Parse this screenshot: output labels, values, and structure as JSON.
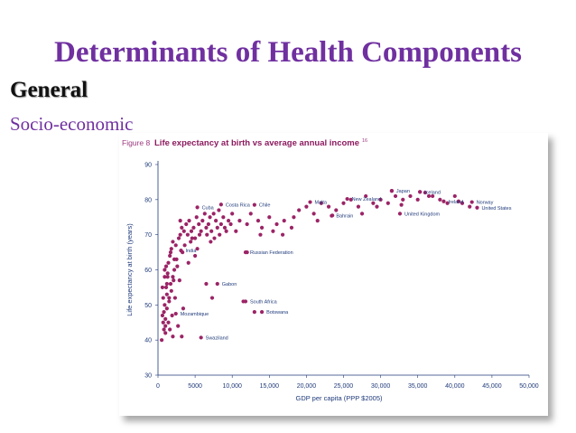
{
  "slide": {
    "title": "Determinants of Health Components",
    "heading": "General",
    "subheading": "Socio-economic"
  },
  "colors": {
    "title": "#7030a0",
    "figure_label": "#9b3a7f",
    "chart_title": "#8b1a5e",
    "axis_text": "#1f3a7a",
    "point": "#9b2466"
  },
  "figure": {
    "label": "Figure 8",
    "title": "Life expectancy at birth vs average annual income",
    "superscript": "16"
  },
  "chart_data": {
    "type": "scatter",
    "title": "Life expectancy at birth vs average annual income",
    "xlabel": "GDP per capita (PPP $2005)",
    "ylabel": "Life expectancy at birth (years)",
    "xlim": [
      0,
      50000
    ],
    "ylim": [
      30,
      90
    ],
    "xticks": [
      0,
      5000,
      10000,
      15000,
      20000,
      25000,
      30000,
      35000,
      40000,
      45000,
      50000
    ],
    "xtick_labels": [
      "0",
      "5000",
      "10,000",
      "15,000",
      "20,000",
      "25,000",
      "30,000",
      "35,000",
      "40,000",
      "45,000",
      "50,000"
    ],
    "yticks": [
      30,
      40,
      50,
      60,
      70,
      80,
      90
    ],
    "ytick_labels": [
      "30",
      "40",
      "50",
      "60",
      "70",
      "80",
      "90"
    ],
    "grid": false,
    "annotations": [
      {
        "text": "Japan",
        "x": 31500,
        "y": 82.5
      },
      {
        "text": "Iceland",
        "x": 35300,
        "y": 82.2
      },
      {
        "text": "New Zealand",
        "x": 25500,
        "y": 80.2
      },
      {
        "text": "Ireland",
        "x": 38500,
        "y": 79.5
      },
      {
        "text": "Norway",
        "x": 42300,
        "y": 79.3
      },
      {
        "text": "United States",
        "x": 43000,
        "y": 77.7
      },
      {
        "text": "Costa Rica",
        "x": 8500,
        "y": 78.6
      },
      {
        "text": "Chile",
        "x": 13000,
        "y": 78.5
      },
      {
        "text": "Malta",
        "x": 20500,
        "y": 79.3
      },
      {
        "text": "Cuba",
        "x": 5300,
        "y": 77.8
      },
      {
        "text": "Bahrain",
        "x": 23400,
        "y": 75.4
      },
      {
        "text": "United Kingdom",
        "x": 32600,
        "y": 76.0
      },
      {
        "text": "India",
        "x": 3100,
        "y": 65.5
      },
      {
        "text": "Russian Federation",
        "x": 11800,
        "y": 65.0
      },
      {
        "text": "Gabon",
        "x": 8000,
        "y": 56.0
      },
      {
        "text": "South Africa",
        "x": 11800,
        "y": 51.0
      },
      {
        "text": "Botswana",
        "x": 14000,
        "y": 48.0
      },
      {
        "text": "Mozambique",
        "x": 2400,
        "y": 47.5
      },
      {
        "text": "Swaziland",
        "x": 5800,
        "y": 40.7
      }
    ],
    "series": [
      {
        "points": [
          [
            500,
            40
          ],
          [
            700,
            45
          ],
          [
            800,
            48
          ],
          [
            900,
            50
          ],
          [
            1000,
            42
          ],
          [
            1100,
            55
          ],
          [
            1200,
            53
          ],
          [
            1300,
            58
          ],
          [
            900,
            60
          ],
          [
            1500,
            52
          ],
          [
            800,
            43
          ],
          [
            1000,
            46
          ],
          [
            1200,
            49
          ],
          [
            600,
            47
          ],
          [
            1700,
            56
          ],
          [
            2000,
            58
          ],
          [
            1400,
            62
          ],
          [
            1600,
            64
          ],
          [
            1800,
            66
          ],
          [
            2200,
            60
          ],
          [
            2500,
            63
          ],
          [
            2400,
            67
          ],
          [
            2800,
            69
          ],
          [
            3000,
            70
          ],
          [
            3200,
            72
          ],
          [
            3500,
            71
          ],
          [
            3800,
            73
          ],
          [
            4000,
            70
          ],
          [
            4200,
            74
          ],
          [
            4500,
            71
          ],
          [
            4800,
            72
          ],
          [
            5000,
            69
          ],
          [
            5200,
            75
          ],
          [
            5500,
            73
          ],
          [
            5800,
            71
          ],
          [
            6000,
            74
          ],
          [
            6300,
            76
          ],
          [
            6500,
            72
          ],
          [
            6800,
            73
          ],
          [
            7000,
            75
          ],
          [
            7200,
            71
          ],
          [
            7500,
            76
          ],
          [
            7800,
            74
          ],
          [
            8000,
            72
          ],
          [
            8200,
            77
          ],
          [
            8500,
            73
          ],
          [
            8800,
            75
          ],
          [
            9000,
            72
          ],
          [
            9500,
            74
          ],
          [
            10000,
            76
          ],
          [
            2000,
            41
          ],
          [
            1500,
            51
          ],
          [
            1800,
            54
          ],
          [
            2100,
            57
          ],
          [
            1300,
            59
          ],
          [
            2600,
            61
          ],
          [
            3300,
            65
          ],
          [
            4400,
            68
          ],
          [
            5600,
            70
          ],
          [
            6600,
            70
          ],
          [
            7600,
            69
          ],
          [
            9200,
            71
          ],
          [
            11000,
            74
          ],
          [
            12000,
            73
          ],
          [
            12500,
            76
          ],
          [
            13500,
            74
          ],
          [
            14000,
            72
          ],
          [
            15000,
            75
          ],
          [
            15500,
            71
          ],
          [
            16000,
            73
          ],
          [
            17000,
            74
          ],
          [
            18000,
            72
          ],
          [
            19000,
            77
          ],
          [
            20000,
            78
          ],
          [
            21000,
            76
          ],
          [
            22000,
            79
          ],
          [
            23000,
            78
          ],
          [
            24000,
            77
          ],
          [
            25000,
            79
          ],
          [
            26000,
            80
          ],
          [
            27000,
            78
          ],
          [
            28000,
            81
          ],
          [
            29000,
            79
          ],
          [
            30000,
            80
          ],
          [
            31000,
            79
          ],
          [
            32000,
            81
          ],
          [
            33000,
            80
          ],
          [
            34000,
            81
          ],
          [
            35000,
            80
          ],
          [
            36000,
            82
          ],
          [
            37000,
            81
          ],
          [
            38000,
            80
          ],
          [
            39000,
            79
          ],
          [
            40000,
            81
          ],
          [
            41000,
            79
          ],
          [
            42000,
            78
          ],
          [
            31500,
            82.5
          ],
          [
            35300,
            82.2
          ],
          [
            6500,
            56
          ],
          [
            7300,
            52
          ],
          [
            11500,
            51
          ],
          [
            13000,
            48
          ],
          [
            12000,
            65
          ],
          [
            3200,
            41
          ],
          [
            1200,
            56
          ],
          [
            1400,
            45
          ],
          [
            900,
            58
          ],
          [
            1900,
            47
          ],
          [
            2300,
            52
          ],
          [
            1100,
            61
          ],
          [
            3600,
            67
          ],
          [
            4100,
            62
          ],
          [
            5300,
            66
          ],
          [
            3000,
            74
          ],
          [
            2000,
            68
          ],
          [
            1000,
            44
          ],
          [
            700,
            52
          ],
          [
            600,
            55
          ],
          [
            1600,
            43
          ],
          [
            2200,
            63
          ],
          [
            5000,
            64
          ],
          [
            4600,
            69
          ],
          [
            7100,
            68
          ],
          [
            8300,
            70
          ],
          [
            9800,
            73
          ],
          [
            10500,
            71
          ],
          [
            13800,
            70
          ],
          [
            16800,
            70
          ],
          [
            18300,
            75
          ],
          [
            21500,
            74
          ],
          [
            23500,
            75.5
          ],
          [
            27500,
            76
          ],
          [
            29500,
            78
          ],
          [
            32800,
            78.5
          ],
          [
            36500,
            81
          ],
          [
            40500,
            79.5
          ],
          [
            2700,
            44
          ],
          [
            3400,
            49
          ],
          [
            2900,
            57
          ],
          [
            1700,
            65
          ]
        ]
      }
    ]
  }
}
